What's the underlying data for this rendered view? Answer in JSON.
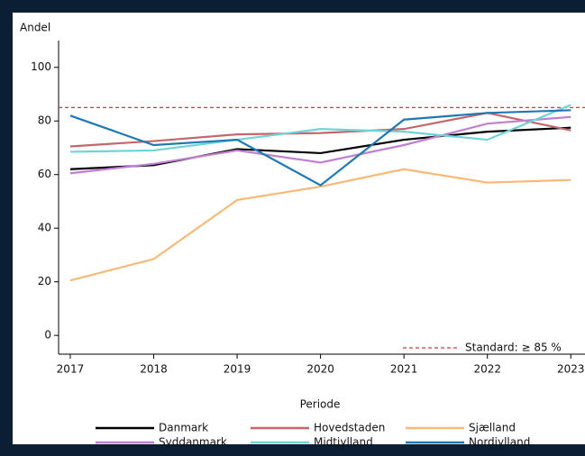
{
  "chart_data": {
    "type": "line",
    "y_label": "Andel",
    "x_label": "Periode",
    "x": [
      2017,
      2018,
      2019,
      2020,
      2021,
      2022,
      2023
    ],
    "xlim": [
      2016.86,
      2023.17
    ],
    "xticks": [
      2017,
      2018,
      2019,
      2020,
      2021,
      2022,
      2023
    ],
    "ylim": [
      -7,
      110
    ],
    "yticks": [
      0,
      20,
      40,
      60,
      80,
      100
    ],
    "reference": {
      "value": 85,
      "label": "Standard: ≥ 85 %",
      "color": "#e8302e"
    },
    "series": [
      {
        "name": "Danmark",
        "color": "#000000",
        "values": [
          62,
          63.5,
          69.5,
          68,
          73,
          76,
          77.5
        ]
      },
      {
        "name": "Hovedstaden",
        "color": "#c4676c",
        "values": [
          70.5,
          72.5,
          75,
          75.5,
          77,
          83,
          76.5
        ]
      },
      {
        "name": "Sjælland",
        "color": "#f7b978",
        "values": [
          20.5,
          28.5,
          50.5,
          55.5,
          62,
          57,
          58
        ]
      },
      {
        "name": "Syddanmark",
        "color": "#c07fd0",
        "values": [
          60.5,
          64,
          69,
          64.5,
          71,
          79,
          81.5
        ]
      },
      {
        "name": "Midtjylland",
        "color": "#6fd4d6",
        "values": [
          68.5,
          69,
          73,
          77,
          76,
          73,
          86
        ]
      },
      {
        "name": "Nordjylland",
        "color": "#1f78b4",
        "values": [
          82,
          71,
          73,
          56,
          80.5,
          83,
          84
        ]
      }
    ]
  }
}
